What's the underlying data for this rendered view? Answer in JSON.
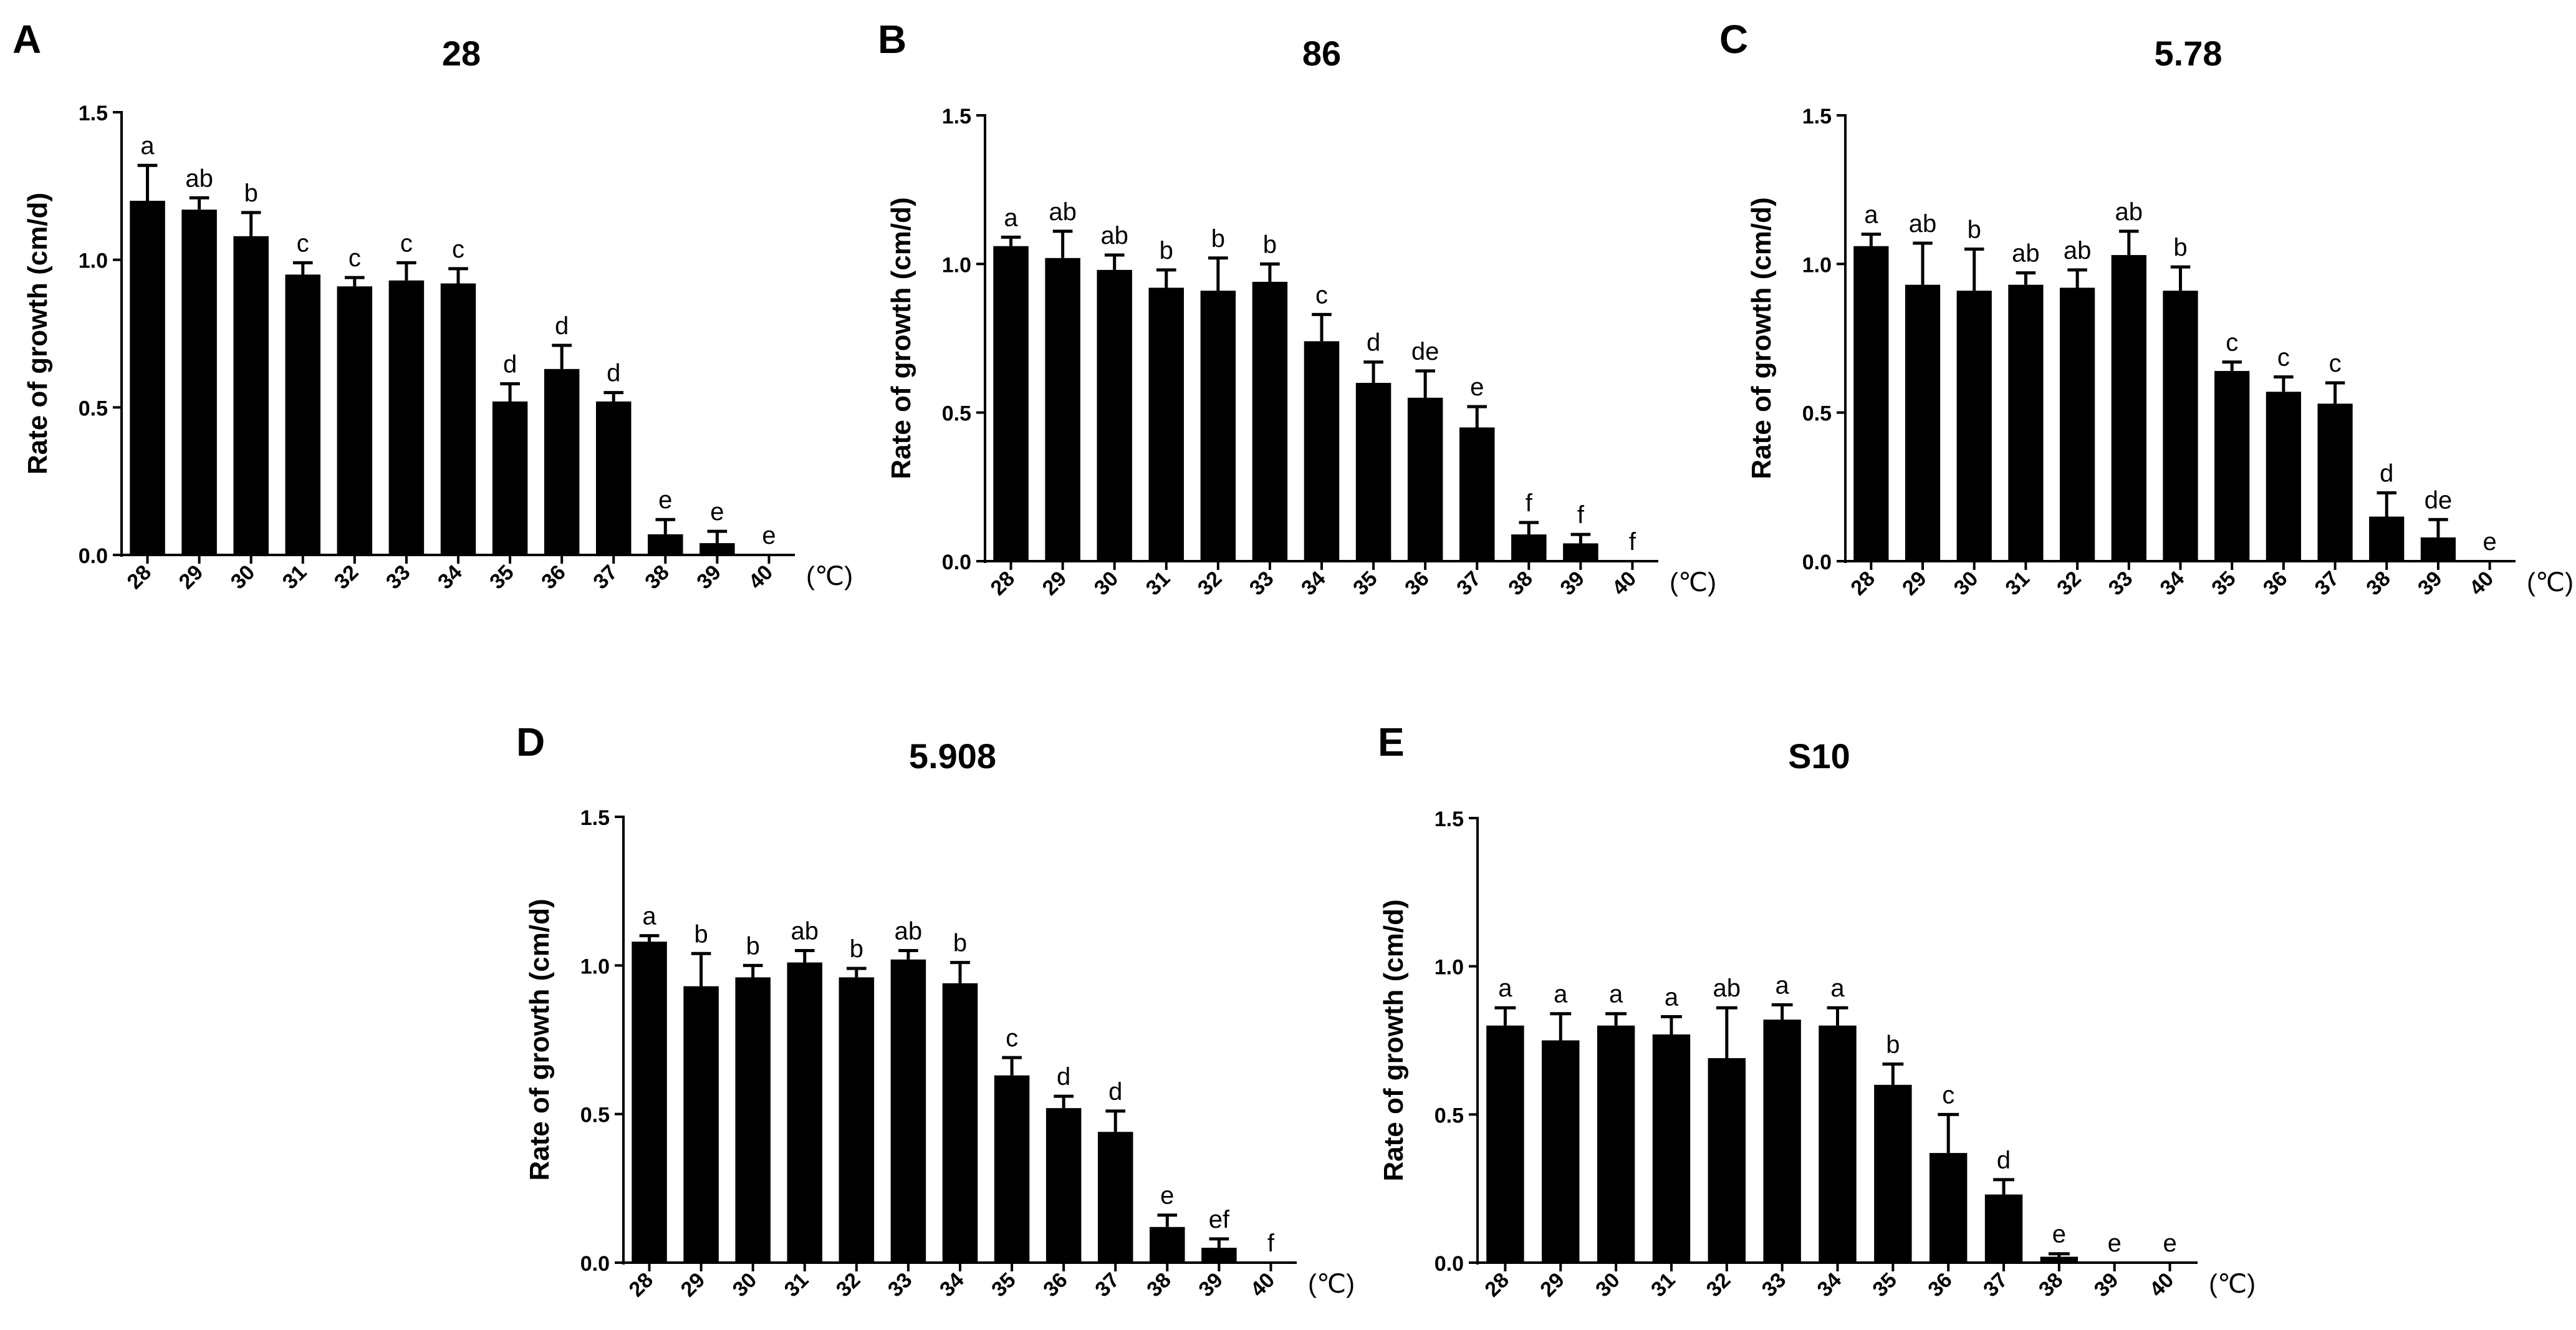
{
  "colors": {
    "bar": "#000000",
    "axis": "#000000",
    "background": "#ffffff"
  },
  "chart_data": [
    {
      "type": "bar",
      "panel_label": "A",
      "title": "28",
      "ylabel": "Rate of growth (cm/d)",
      "xlabel": "",
      "unit_label": "(℃)",
      "ylim": [
        0,
        1.5
      ],
      "yticks": [
        "0.0",
        "0.5",
        "1.0",
        "1.5"
      ],
      "categories": [
        "28",
        "29",
        "30",
        "31",
        "32",
        "33",
        "34",
        "35",
        "36",
        "37",
        "38",
        "39",
        "40"
      ],
      "values": [
        1.2,
        1.17,
        1.08,
        0.95,
        0.91,
        0.93,
        0.92,
        0.52,
        0.63,
        0.52,
        0.07,
        0.04,
        0
      ],
      "errors": [
        0.12,
        0.04,
        0.08,
        0.04,
        0.03,
        0.06,
        0.05,
        0.06,
        0.08,
        0.03,
        0.05,
        0.04,
        0
      ],
      "letters": [
        "a",
        "ab",
        "b",
        "c",
        "c",
        "c",
        "c",
        "d",
        "d",
        "d",
        "e",
        "e",
        "e"
      ]
    },
    {
      "type": "bar",
      "panel_label": "B",
      "title": "86",
      "ylabel": "Rate of growth (cm/d)",
      "xlabel": "",
      "unit_label": "(℃)",
      "ylim": [
        0,
        1.5
      ],
      "yticks": [
        "0.0",
        "0.5",
        "1.0",
        "1.5"
      ],
      "categories": [
        "28",
        "29",
        "30",
        "31",
        "32",
        "33",
        "34",
        "35",
        "36",
        "37",
        "38",
        "39",
        "40"
      ],
      "values": [
        1.06,
        1.02,
        0.98,
        0.92,
        0.91,
        0.94,
        0.74,
        0.6,
        0.55,
        0.45,
        0.09,
        0.06,
        0
      ],
      "errors": [
        0.03,
        0.09,
        0.05,
        0.06,
        0.11,
        0.06,
        0.09,
        0.07,
        0.09,
        0.07,
        0.04,
        0.03,
        0
      ],
      "letters": [
        "a",
        "ab",
        "ab",
        "b",
        "b",
        "b",
        "c",
        "d",
        "de",
        "e",
        "f",
        "f",
        "f"
      ]
    },
    {
      "type": "bar",
      "panel_label": "C",
      "title": "5.78",
      "ylabel": "Rate of growth (cm/d)",
      "xlabel": "",
      "unit_label": "(℃)",
      "ylim": [
        0,
        1.5
      ],
      "yticks": [
        "0.0",
        "0.5",
        "1.0",
        "1.5"
      ],
      "categories": [
        "28",
        "29",
        "30",
        "31",
        "32",
        "33",
        "34",
        "35",
        "36",
        "37",
        "38",
        "39",
        "40"
      ],
      "values": [
        1.06,
        0.93,
        0.91,
        0.93,
        0.92,
        1.03,
        0.91,
        0.64,
        0.57,
        0.53,
        0.15,
        0.08,
        0
      ],
      "errors": [
        0.04,
        0.14,
        0.14,
        0.04,
        0.06,
        0.08,
        0.08,
        0.03,
        0.05,
        0.07,
        0.08,
        0.06,
        0
      ],
      "letters": [
        "a",
        "ab",
        "b",
        "ab",
        "ab",
        "ab",
        "b",
        "c",
        "c",
        "c",
        "d",
        "de",
        "e"
      ]
    },
    {
      "type": "bar",
      "panel_label": "D",
      "title": "5.908",
      "ylabel": "Rate of growth (cm/d)",
      "xlabel": "",
      "unit_label": "(℃)",
      "ylim": [
        0,
        1.5
      ],
      "yticks": [
        "0.0",
        "0.5",
        "1.0",
        "1.5"
      ],
      "categories": [
        "28",
        "29",
        "30",
        "31",
        "32",
        "33",
        "34",
        "35",
        "36",
        "37",
        "38",
        "39",
        "40"
      ],
      "values": [
        1.08,
        0.93,
        0.96,
        1.01,
        0.96,
        1.02,
        0.94,
        0.63,
        0.52,
        0.44,
        0.12,
        0.05,
        0
      ],
      "errors": [
        0.02,
        0.11,
        0.04,
        0.04,
        0.03,
        0.03,
        0.07,
        0.06,
        0.04,
        0.07,
        0.04,
        0.03,
        0
      ],
      "letters": [
        "a",
        "b",
        "b",
        "ab",
        "b",
        "ab",
        "b",
        "c",
        "d",
        "d",
        "e",
        "ef",
        "f"
      ]
    },
    {
      "type": "bar",
      "panel_label": "E",
      "title": "S10",
      "ylabel": "Rate of growth (cm/d)",
      "xlabel": "",
      "unit_label": "(℃)",
      "ylim": [
        0,
        1.5
      ],
      "yticks": [
        "0.0",
        "0.5",
        "1.0",
        "1.5"
      ],
      "categories": [
        "28",
        "29",
        "30",
        "31",
        "32",
        "33",
        "34",
        "35",
        "36",
        "37",
        "38",
        "39",
        "40"
      ],
      "values": [
        0.8,
        0.75,
        0.8,
        0.77,
        0.69,
        0.82,
        0.8,
        0.6,
        0.37,
        0.23,
        0.02,
        0,
        0
      ],
      "errors": [
        0.06,
        0.09,
        0.04,
        0.06,
        0.17,
        0.05,
        0.06,
        0.07,
        0.13,
        0.05,
        0.01,
        0,
        0
      ],
      "letters": [
        "a",
        "a",
        "a",
        "a",
        "ab",
        "a",
        "a",
        "b",
        "c",
        "d",
        "e",
        "e",
        "e"
      ]
    }
  ]
}
